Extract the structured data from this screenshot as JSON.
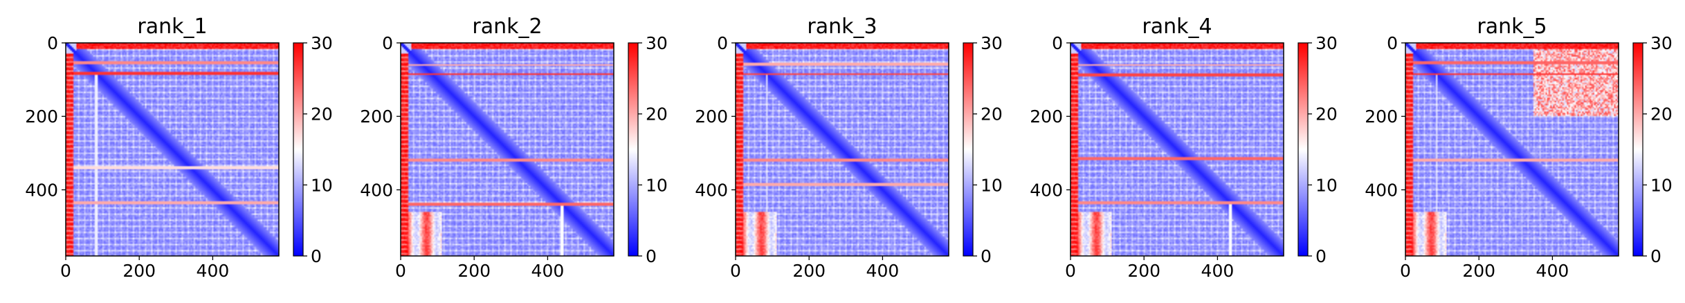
{
  "chart_data": [
    {
      "type": "heatmap",
      "title": "rank_1",
      "xlabel": "",
      "ylabel": "",
      "n": 580,
      "xlim": [
        0,
        580
      ],
      "ylim": [
        580,
        0
      ],
      "x_ticks": [
        0,
        200,
        400
      ],
      "y_ticks": [
        0,
        200,
        400
      ],
      "x_tick_labels": [
        "0",
        "200",
        "400"
      ],
      "y_tick_labels": [
        "0",
        "200",
        "400"
      ],
      "colormap": "bwr",
      "colorbar": {
        "range": [
          0,
          30
        ],
        "ticks": [
          0,
          10,
          20,
          30
        ],
        "tick_labels": [
          "0",
          "10",
          "20",
          "30"
        ]
      },
      "features": {
        "left_band": {
          "from": 0,
          "to": 22,
          "value": 30,
          "dotted": true
        },
        "top_band": {
          "from": 0,
          "to": 18,
          "value": 30
        },
        "diagonal_value": 2,
        "background_value": 8,
        "horizontal_lines": [
          {
            "at": 55,
            "value": 22
          },
          {
            "at": 82,
            "value": 27
          },
          {
            "at": 340,
            "value": 17
          },
          {
            "at": 435,
            "value": 20
          }
        ],
        "vertical_lines": [
          {
            "at": 82,
            "value": 14
          }
        ],
        "bottom_left_hot": false
      }
    },
    {
      "type": "heatmap",
      "title": "rank_2",
      "xlabel": "",
      "ylabel": "",
      "n": 580,
      "xlim": [
        0,
        580
      ],
      "ylim": [
        580,
        0
      ],
      "x_ticks": [
        0,
        200,
        400
      ],
      "y_ticks": [
        0,
        200,
        400
      ],
      "x_tick_labels": [
        "0",
        "200",
        "400"
      ],
      "y_tick_labels": [
        "0",
        "200",
        "400"
      ],
      "colormap": "bwr",
      "colorbar": {
        "range": [
          0,
          30
        ],
        "ticks": [
          0,
          10,
          20,
          30
        ],
        "tick_labels": [
          "0",
          "10",
          "20",
          "30"
        ]
      },
      "features": {
        "left_band": {
          "from": 0,
          "to": 22,
          "value": 30,
          "dotted": true
        },
        "top_band": {
          "from": 0,
          "to": 18,
          "value": 30
        },
        "diagonal_value": 2,
        "background_value": 8,
        "horizontal_lines": [
          {
            "at": 60,
            "value": 20
          },
          {
            "at": 85,
            "value": 27
          },
          {
            "at": 318,
            "value": 22
          },
          {
            "at": 440,
            "value": 24
          }
        ],
        "vertical_lines": [
          {
            "at": 440,
            "value": 15
          }
        ],
        "bottom_left_hot": true
      }
    },
    {
      "type": "heatmap",
      "title": "rank_3",
      "xlabel": "",
      "ylabel": "",
      "n": 580,
      "xlim": [
        0,
        580
      ],
      "ylim": [
        580,
        0
      ],
      "x_ticks": [
        0,
        200,
        400
      ],
      "y_ticks": [
        0,
        200,
        400
      ],
      "x_tick_labels": [
        "0",
        "200",
        "400"
      ],
      "y_tick_labels": [
        "0",
        "200",
        "400"
      ],
      "colormap": "bwr",
      "colorbar": {
        "range": [
          0,
          30
        ],
        "ticks": [
          0,
          10,
          20,
          30
        ],
        "tick_labels": [
          "0",
          "10",
          "20",
          "30"
        ]
      },
      "features": {
        "left_band": {
          "from": 0,
          "to": 22,
          "value": 30,
          "dotted": true
        },
        "top_band": {
          "from": 0,
          "to": 18,
          "value": 30
        },
        "diagonal_value": 2,
        "background_value": 8,
        "horizontal_lines": [
          {
            "at": 58,
            "value": 20
          },
          {
            "at": 85,
            "value": 26
          },
          {
            "at": 318,
            "value": 22
          },
          {
            "at": 385,
            "value": 20
          }
        ],
        "vertical_lines": [
          {
            "at": 85,
            "value": 13
          }
        ],
        "bottom_left_hot": true
      }
    },
    {
      "type": "heatmap",
      "title": "rank_4",
      "xlabel": "",
      "ylabel": "",
      "n": 580,
      "xlim": [
        0,
        580
      ],
      "ylim": [
        580,
        0
      ],
      "x_ticks": [
        0,
        200,
        400
      ],
      "y_ticks": [
        0,
        200,
        400
      ],
      "x_tick_labels": [
        "0",
        "200",
        "400"
      ],
      "y_tick_labels": [
        "0",
        "200",
        "400"
      ],
      "colormap": "bwr",
      "colorbar": {
        "range": [
          0,
          30
        ],
        "ticks": [
          0,
          10,
          20,
          30
        ],
        "tick_labels": [
          "0",
          "10",
          "20",
          "30"
        ]
      },
      "features": {
        "left_band": {
          "from": 0,
          "to": 22,
          "value": 30,
          "dotted": true
        },
        "top_band": {
          "from": 0,
          "to": 18,
          "value": 30
        },
        "diagonal_value": 2,
        "background_value": 8,
        "horizontal_lines": [
          {
            "at": 60,
            "value": 20
          },
          {
            "at": 88,
            "value": 26
          },
          {
            "at": 315,
            "value": 24
          },
          {
            "at": 435,
            "value": 22
          }
        ],
        "vertical_lines": [
          {
            "at": 435,
            "value": 15
          }
        ],
        "bottom_left_hot": true
      }
    },
    {
      "type": "heatmap",
      "title": "rank_5",
      "xlabel": "",
      "ylabel": "",
      "n": 580,
      "xlim": [
        0,
        580
      ],
      "ylim": [
        580,
        0
      ],
      "x_ticks": [
        0,
        200,
        400
      ],
      "y_ticks": [
        0,
        200,
        400
      ],
      "x_tick_labels": [
        "0",
        "200",
        "400"
      ],
      "y_tick_labels": [
        "0",
        "200",
        "400"
      ],
      "colormap": "bwr",
      "colorbar": {
        "range": [
          0,
          30
        ],
        "ticks": [
          0,
          10,
          20,
          30
        ],
        "tick_labels": [
          "0",
          "10",
          "20",
          "30"
        ]
      },
      "features": {
        "left_band": {
          "from": 0,
          "to": 22,
          "value": 30,
          "dotted": true
        },
        "top_band": {
          "from": 0,
          "to": 18,
          "value": 30
        },
        "diagonal_value": 2,
        "background_value": 8,
        "horizontal_lines": [
          {
            "at": 55,
            "value": 24
          },
          {
            "at": 85,
            "value": 27
          },
          {
            "at": 318,
            "value": 20
          }
        ],
        "vertical_lines": [
          {
            "at": 85,
            "value": 13
          }
        ],
        "bottom_left_hot": true,
        "top_right_warm": true
      }
    }
  ]
}
